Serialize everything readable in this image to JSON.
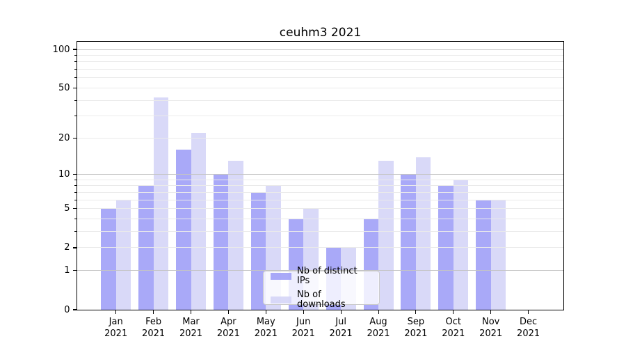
{
  "title": "ceuhm3 2021",
  "chart_data": {
    "type": "bar",
    "title": "ceuhm3 2021",
    "categories": [
      "Jan 2021",
      "Feb 2021",
      "Mar 2021",
      "Apr 2021",
      "May 2021",
      "Jun 2021",
      "Jul 2021",
      "Aug 2021",
      "Sep 2021",
      "Oct 2021",
      "Nov 2021",
      "Dec 2021"
    ],
    "series": [
      {
        "name": "Nb of distinct IPs",
        "color": "rgba(154,154,247,0.85)",
        "values": [
          5,
          8,
          16,
          10,
          7,
          4,
          2,
          4,
          10,
          8,
          6,
          0
        ]
      },
      {
        "name": "Nb of downloads",
        "color": "rgba(210,210,247,0.85)",
        "values": [
          6,
          42,
          22,
          13,
          8,
          5,
          2,
          13,
          14,
          9,
          6,
          0
        ]
      }
    ],
    "y_scale": "log1p",
    "y_ticks_labeled": [
      "100",
      "50",
      "20",
      "10",
      "5",
      "2",
      "1",
      "0"
    ],
    "y_tick_values": [
      100,
      50,
      20,
      10,
      5,
      2,
      1,
      0
    ],
    "ylim": [
      0,
      115
    ],
    "xlabel": "",
    "ylabel": "",
    "grid": true,
    "legend_position": "lower-center"
  },
  "colors": {
    "grid_major": "#c4c4c4",
    "grid_minor": "#eaeaea",
    "spine": "#000000",
    "background": "#ffffff"
  }
}
